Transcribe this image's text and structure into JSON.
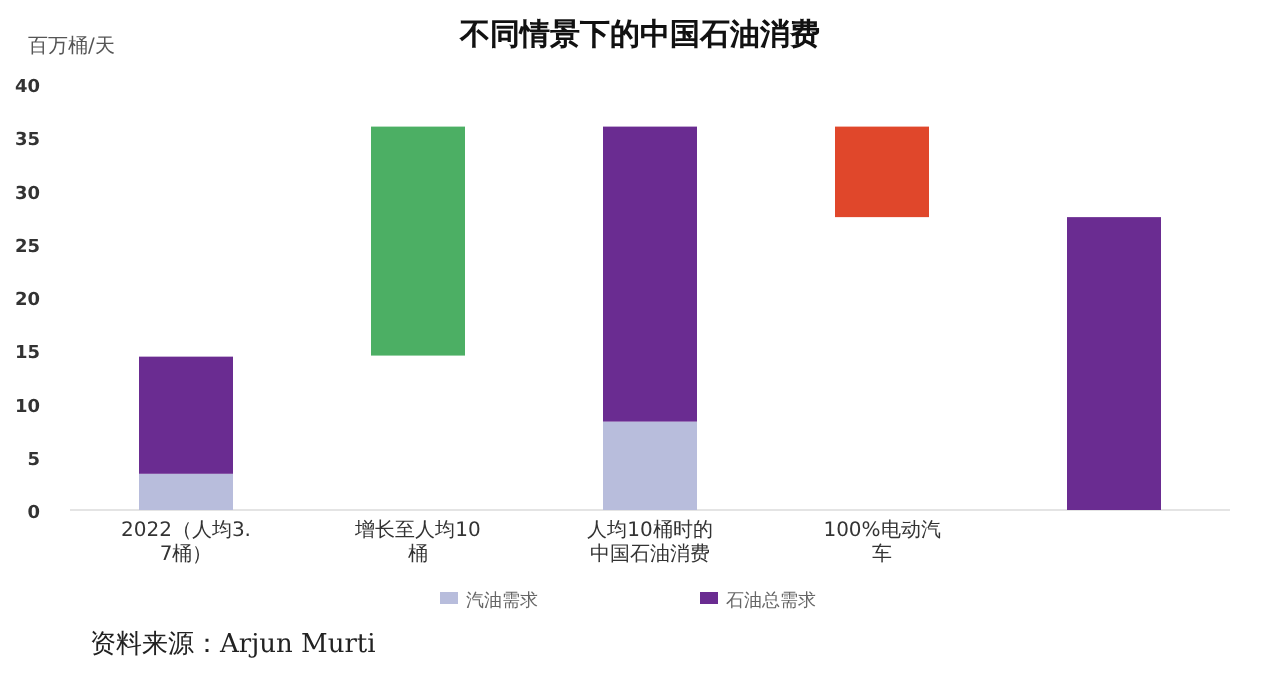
{
  "chart_data": {
    "type": "bar",
    "title": "不同情景下的中国石油消费",
    "ylabel": "百万桶/天",
    "stacked": true,
    "categories": [
      "2022（人均3.7桶）",
      "增长至人均10桶",
      "人均10桶时的中国石油消费",
      "100%电动汽车",
      null
    ],
    "series": [
      {
        "name": "汽油需求",
        "color": "#b8bddc",
        "values": [
          3.4,
          null,
          8.3,
          null,
          null
        ]
      },
      {
        "name": "石油总需求",
        "color": "#6a2c91",
        "values": [
          11,
          null,
          27.7,
          null,
          27.5
        ]
      },
      {
        "colors": [
          null,
          "#4caf64",
          null,
          "#e0472b",
          null
        ],
        "base": [
          null,
          14.5,
          null,
          27.5,
          null
        ],
        "values": [
          null,
          21.5,
          null,
          8.5,
          null
        ]
      }
    ],
    "ylim": [
      0,
      40
    ],
    "yticks": [
      0,
      5,
      10,
      15,
      20,
      25,
      30,
      35,
      40
    ],
    "grid": false,
    "legend": "bottom",
    "annotations": [
      "资料来源：Arjun Murti"
    ]
  }
}
